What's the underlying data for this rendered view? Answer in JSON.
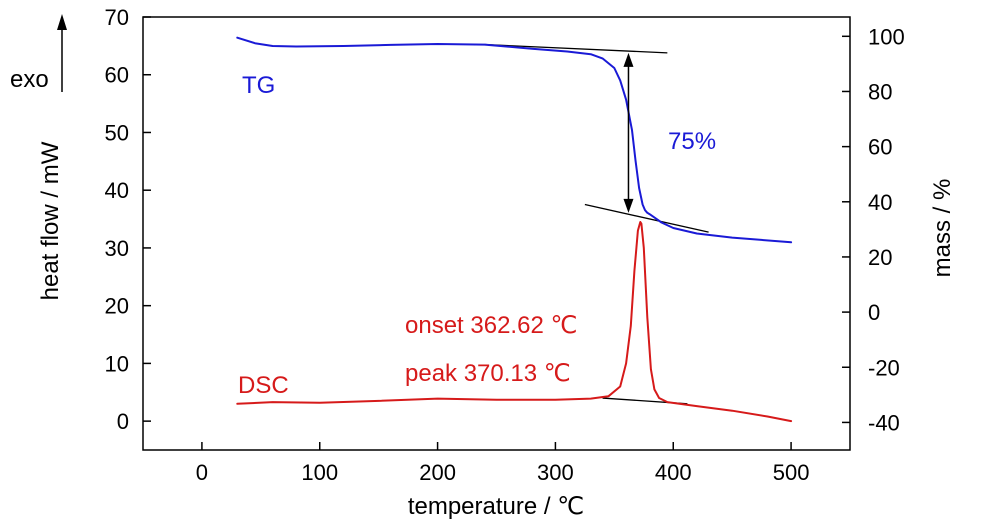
{
  "chart_data": {
    "type": "line",
    "xlabel": "temperature / ℃",
    "ylabel_left": "heat flow / mW",
    "ylabel_right": "mass / %",
    "exo_label": "exo",
    "xlim": [
      -50,
      550
    ],
    "ylim_left": [
      -5,
      70
    ],
    "ylim_right": [
      -50,
      107
    ],
    "x_ticks": [
      0,
      100,
      200,
      300,
      400,
      500
    ],
    "y_left_ticks": [
      0,
      10,
      20,
      30,
      40,
      50,
      60,
      70
    ],
    "y_right_ticks": [
      -40,
      -20,
      0,
      20,
      40,
      60,
      80,
      100
    ],
    "grid": false,
    "series": [
      {
        "name": "TG",
        "axis": "right",
        "color": "#1a1ad6",
        "x": [
          30,
          45,
          60,
          80,
          120,
          160,
          200,
          240,
          280,
          310,
          330,
          340,
          350,
          355,
          360,
          365,
          368,
          371,
          374,
          376,
          378,
          380,
          385,
          390,
          400,
          420,
          450,
          500
        ],
        "y": [
          99.5,
          97.5,
          96.5,
          96.3,
          96.5,
          96.9,
          97.2,
          97.0,
          95.5,
          94.5,
          93.5,
          92.0,
          88.5,
          84.0,
          77.0,
          66.0,
          55.0,
          45.0,
          39.0,
          37.0,
          36.0,
          35.5,
          34.0,
          32.5,
          30.5,
          28.5,
          27.0,
          25.3
        ]
      },
      {
        "name": "DSC",
        "axis": "left",
        "color": "#d61a1a",
        "x": [
          30,
          60,
          100,
          150,
          200,
          250,
          300,
          330,
          345,
          355,
          360,
          364,
          367,
          370,
          372,
          373,
          375,
          378,
          381,
          384,
          388,
          395,
          420,
          450,
          480,
          500
        ],
        "y": [
          3.0,
          3.3,
          3.2,
          3.5,
          3.9,
          3.7,
          3.7,
          3.9,
          4.3,
          6.0,
          10.0,
          16.5,
          26.0,
          33.0,
          34.5,
          34.2,
          30.0,
          18.0,
          9.0,
          5.5,
          4.0,
          3.3,
          2.6,
          1.8,
          0.8,
          0.0
        ]
      }
    ],
    "tangent_lines": [
      {
        "axis": "right",
        "x": [
          240,
          395
        ],
        "y": [
          97.0,
          94.0
        ]
      },
      {
        "axis": "right",
        "x": [
          325,
          430
        ],
        "y": [
          39.0,
          29.0
        ]
      },
      {
        "axis": "left",
        "x": [
          340,
          412
        ],
        "y": [
          4.0,
          3.0
        ]
      }
    ],
    "mass_loss_arrow": {
      "axis": "right",
      "x": 362,
      "y_top": 94.0,
      "y_bottom": 36.0
    },
    "annotations": {
      "tg_label": "TG",
      "dsc_label": "DSC",
      "mass_loss": "75%",
      "onset": "onset 362.62  ℃",
      "peak": "peak  370.13  ℃"
    }
  }
}
